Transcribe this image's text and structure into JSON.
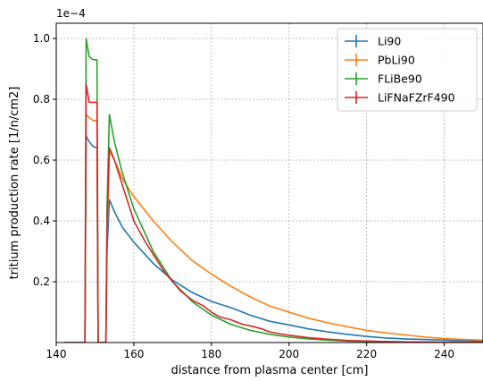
{
  "chart_data": {
    "type": "line",
    "title": "",
    "xlabel": "distance from plasma center [cm]",
    "ylabel": "tritium production rate [1/n/cm2]",
    "offset_label": "1e−4",
    "xlim": [
      140,
      250
    ],
    "ylim": [
      0,
      1.05
    ],
    "x_ticks": [
      140,
      160,
      180,
      200,
      220,
      240
    ],
    "y_ticks": [
      0.2,
      0.4,
      0.6,
      0.8,
      1.0
    ],
    "y_tick_labels": [
      "0.2",
      "0.4",
      "0.6",
      "0.8",
      "1.0"
    ],
    "grid": true,
    "legend_position": "top-right",
    "series": [
      {
        "name": "Li90",
        "color": "#1f77b4",
        "points": [
          [
            142,
            0
          ],
          [
            147.4,
            0
          ],
          [
            147.7,
            0.68
          ],
          [
            148.5,
            0.66
          ],
          [
            149.5,
            0.645
          ],
          [
            150.5,
            0.64
          ],
          [
            150.8,
            0
          ],
          [
            152.8,
            0
          ],
          [
            153.1,
            0.3
          ],
          [
            153.7,
            0.47
          ],
          [
            155,
            0.43
          ],
          [
            157,
            0.38
          ],
          [
            160,
            0.33
          ],
          [
            165,
            0.26
          ],
          [
            170,
            0.205
          ],
          [
            175,
            0.165
          ],
          [
            180,
            0.135
          ],
          [
            185,
            0.115
          ],
          [
            190,
            0.09
          ],
          [
            195,
            0.07
          ],
          [
            200,
            0.058
          ],
          [
            205,
            0.045
          ],
          [
            210,
            0.035
          ],
          [
            215,
            0.027
          ],
          [
            220,
            0.02
          ],
          [
            225,
            0.015
          ],
          [
            230,
            0.012
          ],
          [
            235,
            0.01
          ],
          [
            240,
            0.008
          ],
          [
            245,
            0.006
          ],
          [
            250,
            0.005
          ]
        ]
      },
      {
        "name": "PbLi90",
        "color": "#ff7f0e",
        "points": [
          [
            142,
            0
          ],
          [
            147.4,
            0
          ],
          [
            147.7,
            0.75
          ],
          [
            148.5,
            0.74
          ],
          [
            149.5,
            0.73
          ],
          [
            150.5,
            0.73
          ],
          [
            150.8,
            0
          ],
          [
            152.8,
            0
          ],
          [
            153.1,
            0.35
          ],
          [
            153.7,
            0.63
          ],
          [
            155,
            0.6
          ],
          [
            157,
            0.54
          ],
          [
            160,
            0.48
          ],
          [
            165,
            0.4
          ],
          [
            170,
            0.33
          ],
          [
            175,
            0.27
          ],
          [
            180,
            0.225
          ],
          [
            185,
            0.185
          ],
          [
            190,
            0.15
          ],
          [
            195,
            0.12
          ],
          [
            200,
            0.1
          ],
          [
            205,
            0.08
          ],
          [
            210,
            0.065
          ],
          [
            215,
            0.052
          ],
          [
            220,
            0.04
          ],
          [
            225,
            0.032
          ],
          [
            230,
            0.025
          ],
          [
            235,
            0.018
          ],
          [
            240,
            0.013
          ],
          [
            245,
            0.01
          ],
          [
            250,
            0.008
          ]
        ]
      },
      {
        "name": "FLiBe90",
        "color": "#2ca02c",
        "points": [
          [
            142,
            0
          ],
          [
            147.4,
            0
          ],
          [
            147.7,
            1.0
          ],
          [
            148.5,
            0.94
          ],
          [
            149.5,
            0.93
          ],
          [
            150.5,
            0.93
          ],
          [
            150.8,
            0
          ],
          [
            152.8,
            0
          ],
          [
            153.1,
            0.45
          ],
          [
            153.7,
            0.75
          ],
          [
            155,
            0.66
          ],
          [
            157,
            0.56
          ],
          [
            160,
            0.44
          ],
          [
            165,
            0.3
          ],
          [
            170,
            0.2
          ],
          [
            175,
            0.135
          ],
          [
            180,
            0.09
          ],
          [
            185,
            0.06
          ],
          [
            190,
            0.04
          ],
          [
            195,
            0.027
          ],
          [
            200,
            0.018
          ],
          [
            205,
            0.012
          ],
          [
            210,
            0.008
          ],
          [
            215,
            0.005
          ],
          [
            220,
            0.004
          ],
          [
            225,
            0.003
          ],
          [
            230,
            0.002
          ],
          [
            240,
            0.001
          ],
          [
            250,
            0.0005
          ]
        ]
      },
      {
        "name": "LiFNaFZrF490",
        "color": "#d62728",
        "points": [
          [
            142,
            0
          ],
          [
            147.4,
            0
          ],
          [
            147.7,
            0.85
          ],
          [
            148.5,
            0.79
          ],
          [
            149.5,
            0.79
          ],
          [
            150.5,
            0.79
          ],
          [
            150.8,
            0
          ],
          [
            152.8,
            0
          ],
          [
            153.1,
            0.4
          ],
          [
            153.7,
            0.64
          ],
          [
            155,
            0.6
          ],
          [
            157,
            0.52
          ],
          [
            160,
            0.4
          ],
          [
            163,
            0.33
          ],
          [
            165,
            0.29
          ],
          [
            168,
            0.23
          ],
          [
            170,
            0.2
          ],
          [
            172,
            0.17
          ],
          [
            175,
            0.14
          ],
          [
            178,
            0.12
          ],
          [
            180,
            0.1
          ],
          [
            182,
            0.085
          ],
          [
            185,
            0.075
          ],
          [
            188,
            0.06
          ],
          [
            190,
            0.055
          ],
          [
            193,
            0.045
          ],
          [
            195,
            0.035
          ],
          [
            198,
            0.028
          ],
          [
            200,
            0.024
          ],
          [
            205,
            0.016
          ],
          [
            210,
            0.011
          ],
          [
            215,
            0.007
          ],
          [
            220,
            0.005
          ],
          [
            225,
            0.003
          ],
          [
            230,
            0.002
          ],
          [
            240,
            0.001
          ],
          [
            250,
            0.0005
          ]
        ]
      }
    ]
  }
}
